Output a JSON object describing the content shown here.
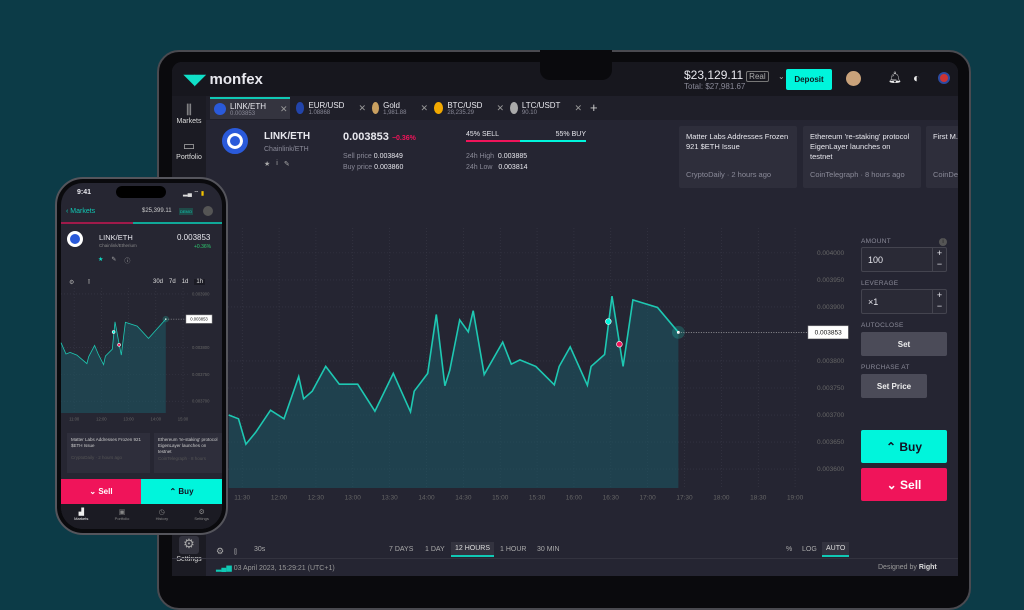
{
  "app": {
    "logo": "monfex",
    "balance": "$23,129.11",
    "account_type": "Real",
    "total": "Total: $27,981.67",
    "deposit": "Deposit",
    "accent": "#00f5dc",
    "sell_color": "#f0145a"
  },
  "sidebar": {
    "items": [
      {
        "label": "Markets",
        "icon": "candles-icon"
      },
      {
        "label": "Portfolio",
        "icon": "briefcase-icon"
      },
      {
        "label": "Settings",
        "icon": "gear-icon"
      }
    ]
  },
  "tabs": [
    {
      "label": "LINK/ETH",
      "price": "0.003853",
      "active": true
    },
    {
      "label": "EUR/USD",
      "price": "1.08868"
    },
    {
      "label": "Gold",
      "price": "1,981.88"
    },
    {
      "label": "BTC/USD",
      "price": "28,235.29"
    },
    {
      "label": "LTC/USDT",
      "price": "90.10"
    }
  ],
  "instrument": {
    "symbol": "LINK/ETH",
    "name": "Chainlink/ETH",
    "price": "0.003853",
    "change": "−0.36%",
    "sell_label": "Sell price",
    "sell_price": "0.003849",
    "buy_label": "Buy price",
    "buy_price": "0.003860",
    "sell_pct_label": "45% SELL",
    "buy_pct_label": "55% BUY",
    "sell_pct": 45,
    "high_label": "24h High",
    "high": "0.003885",
    "low_label": "24h Low",
    "low": "0.003814"
  },
  "news": [
    {
      "title": "Matter Labs Addresses Frozen 921 $ETH Issue",
      "source": "CryptoDaily · 2 hours ago"
    },
    {
      "title": "Ethereum 're-staking' protocol EigenLayer launches on testnet",
      "source": "CoinTelegraph · 8 hours ago"
    },
    {
      "title": "First M... Flat, Et... Long W...",
      "source": "CoinDe..."
    }
  ],
  "order": {
    "amount_label": "AMOUNT",
    "amount": "100",
    "leverage_label": "LEVERAGE",
    "leverage": "×1",
    "autoclose_label": "AUTOCLOSE",
    "set": "Set",
    "purchase_label": "PURCHASE AT",
    "set_price": "Set Price",
    "buy": "Buy",
    "sell": "Sell"
  },
  "toolbar": {
    "interval": "30s",
    "ranges": [
      "7 DAYS",
      "1 DAY",
      "12 HOURS",
      "1 HOUR",
      "30 MIN"
    ],
    "selected_range": "12 HOURS",
    "scales": [
      "%",
      "LOG",
      "AUTO"
    ],
    "selected_scale": "AUTO"
  },
  "footer": {
    "timestamp": "03 April 2023, 15:29:21 (UTC+1)",
    "designed_by": "Designed by",
    "brand": "Right"
  },
  "chart_data": [
    {
      "type": "area",
      "xlim": [
        "11:16",
        "19:04"
      ],
      "ylim": [
        0.003565,
        0.004046
      ],
      "grid": true,
      "x_ticks": [
        "11:30",
        "12:00",
        "12:30",
        "13:00",
        "13:30",
        "14:00",
        "14:30",
        "15:00",
        "15:30",
        "16:00",
        "16:30",
        "17:00",
        "17:30",
        "18:00",
        "18:30",
        "19:00"
      ],
      "y_ticks": [
        "0.004000",
        "0.003950",
        "0.003900",
        "0.003800",
        "0.003750",
        "0.003700",
        "0.003650",
        "0.003600"
      ],
      "current_label": "0.003853",
      "x": [
        "11:19",
        "11:27",
        "11:33",
        "11:41",
        "11:53",
        "12:04",
        "12:16",
        "12:20",
        "12:27",
        "12:38",
        "12:49",
        "13:04",
        "13:18",
        "13:33",
        "13:47",
        "13:50",
        "14:01",
        "14:08",
        "14:15",
        "14:19",
        "14:27",
        "14:34",
        "14:38",
        "14:47",
        "15:02",
        "15:09",
        "15:16",
        "15:29",
        "15:44",
        "15:48",
        "15:57",
        "16:11",
        "16:14",
        "16:25",
        "16:31",
        "16:40",
        "16:48",
        "17:08",
        "17:25"
      ],
      "y": [
        0.0037,
        0.003693,
        0.003646,
        0.003668,
        0.003709,
        0.003693,
        0.003771,
        0.00373,
        0.003744,
        0.00379,
        0.003757,
        0.003757,
        0.003707,
        0.003777,
        0.003706,
        0.003744,
        0.003777,
        0.003886,
        0.003754,
        0.003783,
        0.003876,
        0.003854,
        0.003893,
        0.003775,
        0.003835,
        0.003794,
        0.003802,
        0.00379,
        0.003756,
        0.00379,
        0.003826,
        0.003755,
        0.00379,
        0.003812,
        0.00392,
        0.00379,
        0.003913,
        0.003899,
        0.003853
      ],
      "markers": [
        {
          "x": "16:28",
          "y": 0.003873,
          "kind": "buy",
          "color": "#00f5dc"
        },
        {
          "x": "16:37",
          "y": 0.003831,
          "kind": "sell",
          "color": "#f0145a"
        }
      ]
    },
    {
      "type": "area",
      "xlim": [
        "10:31",
        "15:11"
      ],
      "ylim": [
        0.003678,
        0.003911
      ],
      "grid": true,
      "x_ticks": [
        "11:00",
        "12:00",
        "13:00",
        "14:00",
        "15:00"
      ],
      "y_ticks": [
        "0.003900",
        "0.003800",
        "0.003750",
        "0.003700"
      ],
      "current_label": "0.003853",
      "x": [
        "10:31",
        "10:42",
        "10:51",
        "11:06",
        "11:28",
        "11:32",
        "11:45",
        "11:53",
        "12:05",
        "12:09",
        "12:24",
        "12:30",
        "12:39",
        "12:44",
        "12:53",
        "13:19",
        "13:44",
        "14:22"
      ],
      "y": [
        0.003809,
        0.003788,
        0.003791,
        0.003786,
        0.00377,
        0.003783,
        0.003804,
        0.003788,
        0.003768,
        0.003784,
        0.003797,
        0.003848,
        0.003807,
        0.003786,
        0.003847,
        0.00384,
        0.003817,
        0.003853
      ],
      "markers": [
        {
          "x": "12:27",
          "y": 0.003829,
          "kind": "buy",
          "color": "#00f5dc"
        },
        {
          "x": "12:39",
          "y": 0.003805,
          "kind": "sell",
          "color": "#f0145a"
        }
      ]
    }
  ],
  "phone": {
    "time": "9:41",
    "back": "Markets",
    "balance": "$25,399.11",
    "account_type": "DEMO",
    "symbol": "LINK/ETH",
    "name": "Chainlink/Etherium",
    "price": "0.003853",
    "change": "+0.36%",
    "ranges": [
      "30d",
      "7d",
      "1d",
      "1h"
    ],
    "selected_range": "1h",
    "news": [
      {
        "title": "Matter Labs Addresses Frozen 921 $ETH Issue",
        "source": "CryptoDaily · 2 hours ago"
      },
      {
        "title": "Ethereum 're-staking' protocol EigenLayer launches on testnet",
        "source": "CoinTelegraph · 8 hours"
      }
    ],
    "sell": "Sell",
    "buy": "Buy",
    "nav": [
      "Markets",
      "Portfolio",
      "History",
      "Settings"
    ]
  }
}
